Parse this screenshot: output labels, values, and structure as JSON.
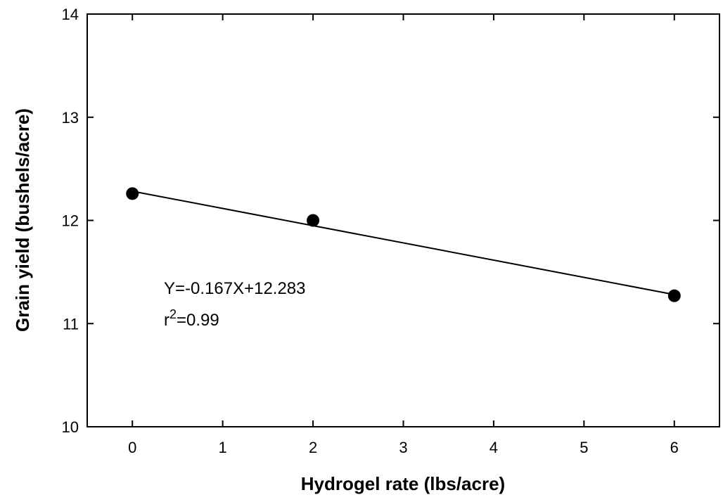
{
  "chart_data": {
    "type": "scatter",
    "title": "",
    "xlabel": "Hydrogel rate (lbs/acre)",
    "ylabel": "Grain yield (bushels/acre)",
    "xlim": [
      -0.5,
      6.5
    ],
    "ylim": [
      10,
      14
    ],
    "x_ticks": [
      0,
      1,
      2,
      3,
      4,
      5,
      6
    ],
    "x_tick_labels": [
      "0",
      "1",
      "2",
      "3",
      "4",
      "5",
      "6"
    ],
    "y_ticks": [
      10,
      11,
      12,
      13,
      14
    ],
    "y_tick_labels": [
      "10",
      "11",
      "12",
      "13",
      "14"
    ],
    "grid": false,
    "series": [
      {
        "x": [
          0,
          2,
          6
        ],
        "y": [
          12.26,
          12.0,
          11.27
        ]
      }
    ],
    "regression": {
      "slope": -0.167,
      "intercept": 12.283,
      "x_range": [
        0,
        6
      ]
    },
    "annotations": {
      "equation": "Y=-0.167X+12.283",
      "r2_prefix": "r",
      "r2_exponent": "2",
      "r2_value": "=0.99"
    },
    "colors": {
      "marker": "#000000",
      "line": "#000000",
      "axis": "#000000"
    }
  }
}
